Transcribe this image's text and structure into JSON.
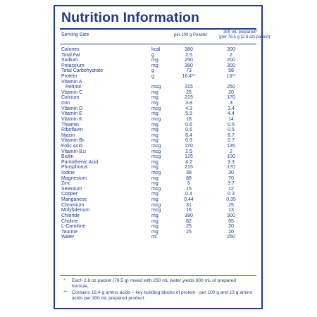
{
  "title": "Nutrition Information",
  "header": {
    "serving_size_label": "Serving Size",
    "col1": "per 100 g Powder",
    "col2_line1": "300 mL prepared*",
    "col2_line2": "(per 79.5 g (2.8 oz) packet)"
  },
  "rows": [
    {
      "name": "Calories",
      "unit": "kcal",
      "v1": "380",
      "v2": "300"
    },
    {
      "name": "Total Fat",
      "unit": "g",
      "v1": "2.5",
      "v2": "2"
    },
    {
      "name": "Sodium",
      "unit": "mg",
      "v1": "250",
      "v2": "200"
    },
    {
      "name": "Potassium",
      "unit": "mg",
      "v1": "380",
      "v2": "300"
    },
    {
      "name": "Total Carbohydrate",
      "unit": "g",
      "v1": "73",
      "v2": "58"
    },
    {
      "name": "Protein",
      "unit": "g",
      "v1": "16.4**",
      "v2": "13**"
    },
    {
      "name": "Vitamin A",
      "unit": "",
      "v1": "",
      "v2": ""
    },
    {
      "name": "Retinol",
      "unit": "mcg",
      "v1": "315",
      "v2": "250",
      "indent": true
    },
    {
      "name": "Vitamin C",
      "unit": "mg",
      "v1": "25",
      "v2": "20"
    },
    {
      "name": "Calcium",
      "unit": "mg",
      "v1": "215",
      "v2": "170"
    },
    {
      "name": "Iron",
      "unit": "mg",
      "v1": "3.8",
      "v2": "3"
    },
    {
      "name": "Vitamin D",
      "unit": "mcg",
      "v1": "4.3",
      "v2": "3.4"
    },
    {
      "name": "Vitamin E",
      "unit": "mg",
      "v1": "5.5",
      "v2": "4.4"
    },
    {
      "name": "Vitamin K",
      "unit": "mcg",
      "v1": "18",
      "v2": "14"
    },
    {
      "name": "Thiamin",
      "unit": "mg",
      "v1": "0.6",
      "v2": "0.5"
    },
    {
      "name": "Riboflavin",
      "unit": "mg",
      "v1": "0.6",
      "v2": "0.5"
    },
    {
      "name": "Niacin",
      "unit": "mg",
      "v1": "8.4",
      "v2": "6.7"
    },
    {
      "name": "Vitamin B",
      "sub": "6",
      "unit": "mg",
      "v1": "0.9",
      "v2": "0.7"
    },
    {
      "name": "Folic Acid",
      "unit": "mcg",
      "v1": "170",
      "v2": "135"
    },
    {
      "name": "Vitamin B",
      "sub": "12",
      "unit": "mcg",
      "v1": "2.5",
      "v2": "2"
    },
    {
      "name": "Biotin",
      "unit": "mcg",
      "v1": "125",
      "v2": "100"
    },
    {
      "name": "Pantothenic Acid",
      "unit": "mg",
      "v1": "4.2",
      "v2": "3.3"
    },
    {
      "name": "Phosphorus",
      "unit": "mg",
      "v1": "215",
      "v2": "170"
    },
    {
      "name": "Iodine",
      "unit": "mcg",
      "v1": "38",
      "v2": "30"
    },
    {
      "name": "Magnesium",
      "unit": "mg",
      "v1": "88",
      "v2": "70"
    },
    {
      "name": "Zinc",
      "unit": "mg",
      "v1": "5",
      "v2": "3.7"
    },
    {
      "name": "Selenium",
      "unit": "mcg",
      "v1": "15",
      "v2": "12"
    },
    {
      "name": "Copper",
      "unit": "mg",
      "v1": "0.4",
      "v2": "0.3"
    },
    {
      "name": "Manganese",
      "unit": "mg",
      "v1": "0.44",
      "v2": "0.35"
    },
    {
      "name": "Chromium",
      "unit": "mcg",
      "v1": "31",
      "v2": "25"
    },
    {
      "name": "Molybdenum",
      "unit": "mcg",
      "v1": "16",
      "v2": "13"
    },
    {
      "name": "Chloride",
      "unit": "mg",
      "v1": "380",
      "v2": "300"
    },
    {
      "name": "Choline",
      "unit": "mg",
      "v1": "82",
      "v2": "65"
    },
    {
      "name": "L-Carnitine",
      "unit": "mg",
      "v1": "25",
      "v2": "20"
    },
    {
      "name": "Taurine",
      "unit": "mg",
      "v1": "25",
      "v2": "20"
    },
    {
      "name": "Water",
      "unit": "ml",
      "v1": "",
      "v2": "250"
    }
  ],
  "footnotes": [
    {
      "marker": "*",
      "text": "Each 2.8 oz packet (79.5 g) mixed with 250 mL water yields 300 mL of prepared formula."
    },
    {
      "marker": "**",
      "text": "Contains 16.4 g amino acids – key building blocks of protein - per 100 g and 13 g amino acids per 300 mL prepared product."
    }
  ],
  "colors": {
    "ink": "#1f3b8f",
    "background": "#ffffff"
  }
}
